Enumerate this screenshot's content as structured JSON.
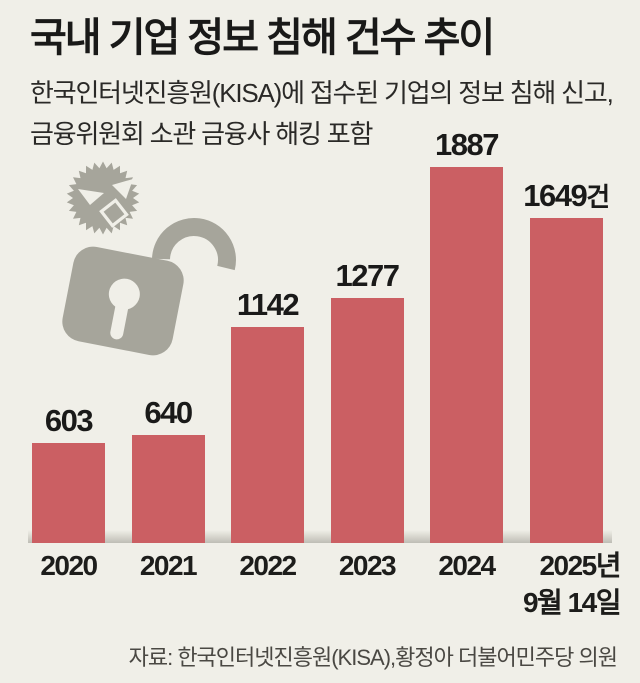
{
  "header": {
    "title": "국내 기업 정보 침해 건수 추이",
    "subtitle_line1": "한국인터넷진흥원(KISA)에 접수된 기업의 정보 침해 신고,",
    "subtitle_line2": "금융위원회 소관 금융사 해킹 포함"
  },
  "chart_data": {
    "type": "bar",
    "title": "국내 기업 정보 침해 건수 추이",
    "categories": [
      [
        "2020"
      ],
      [
        "2021"
      ],
      [
        "2022"
      ],
      [
        "2023"
      ],
      [
        "2024"
      ],
      [
        "2025년",
        "9월 14일"
      ]
    ],
    "values": [
      603,
      640,
      1142,
      1277,
      1887,
      1649
    ],
    "value_labels": [
      "603",
      "640",
      "1142",
      "1277",
      "1887",
      "1649건"
    ],
    "unit_suffix": "건",
    "xlabel": "",
    "ylabel": "",
    "grid": false,
    "legend": "none",
    "bar_color": "#cb5f63",
    "annotation": "마지막 막대에만 단위 '건' 표기"
  },
  "footer": {
    "source": "자료: 한국인터넷진흥원(KISA),황정아 더불어민주당 의원"
  },
  "colors": {
    "background": "#f0efe8",
    "bar": "#cb5f63",
    "icon_gray": "#a6a59b",
    "text_dark": "#191918",
    "text_sub": "#2a2927",
    "text_source": "#4a4843"
  },
  "icons": {
    "virus": "virus-face-icon",
    "lock": "open-padlock-icon"
  }
}
